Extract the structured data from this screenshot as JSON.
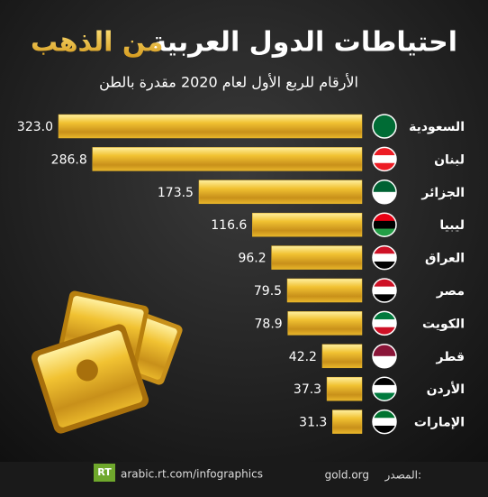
{
  "chart_data": {
    "type": "bar",
    "orientation": "horizontal",
    "title": "احتياطات الدول العربية",
    "title_highlight": "من الذهب",
    "subtitle": "الأرقام للربع الأول لعام 2020 مقدرة بالطن",
    "categories": [
      "السعودية",
      "لبنان",
      "الجزائر",
      "ليبيا",
      "العراق",
      "مصر",
      "الكويت",
      "قطر",
      "الأردن",
      "الإمارات"
    ],
    "values": [
      323.0,
      286.8,
      173.5,
      116.6,
      96.2,
      79.5,
      78.9,
      42.2,
      37.3,
      31.3
    ],
    "value_labels": [
      "323.0",
      "286.8",
      "173.5",
      "116.6",
      "96.2",
      "79.5",
      "78.9",
      "42.2",
      "37.3",
      "31.3"
    ],
    "color": "#e8b62a"
  },
  "footer": {
    "logo": "RT",
    "url": "arabic.rt.com/infographics",
    "source_label": "المصدر:",
    "source": "gold.org"
  }
}
